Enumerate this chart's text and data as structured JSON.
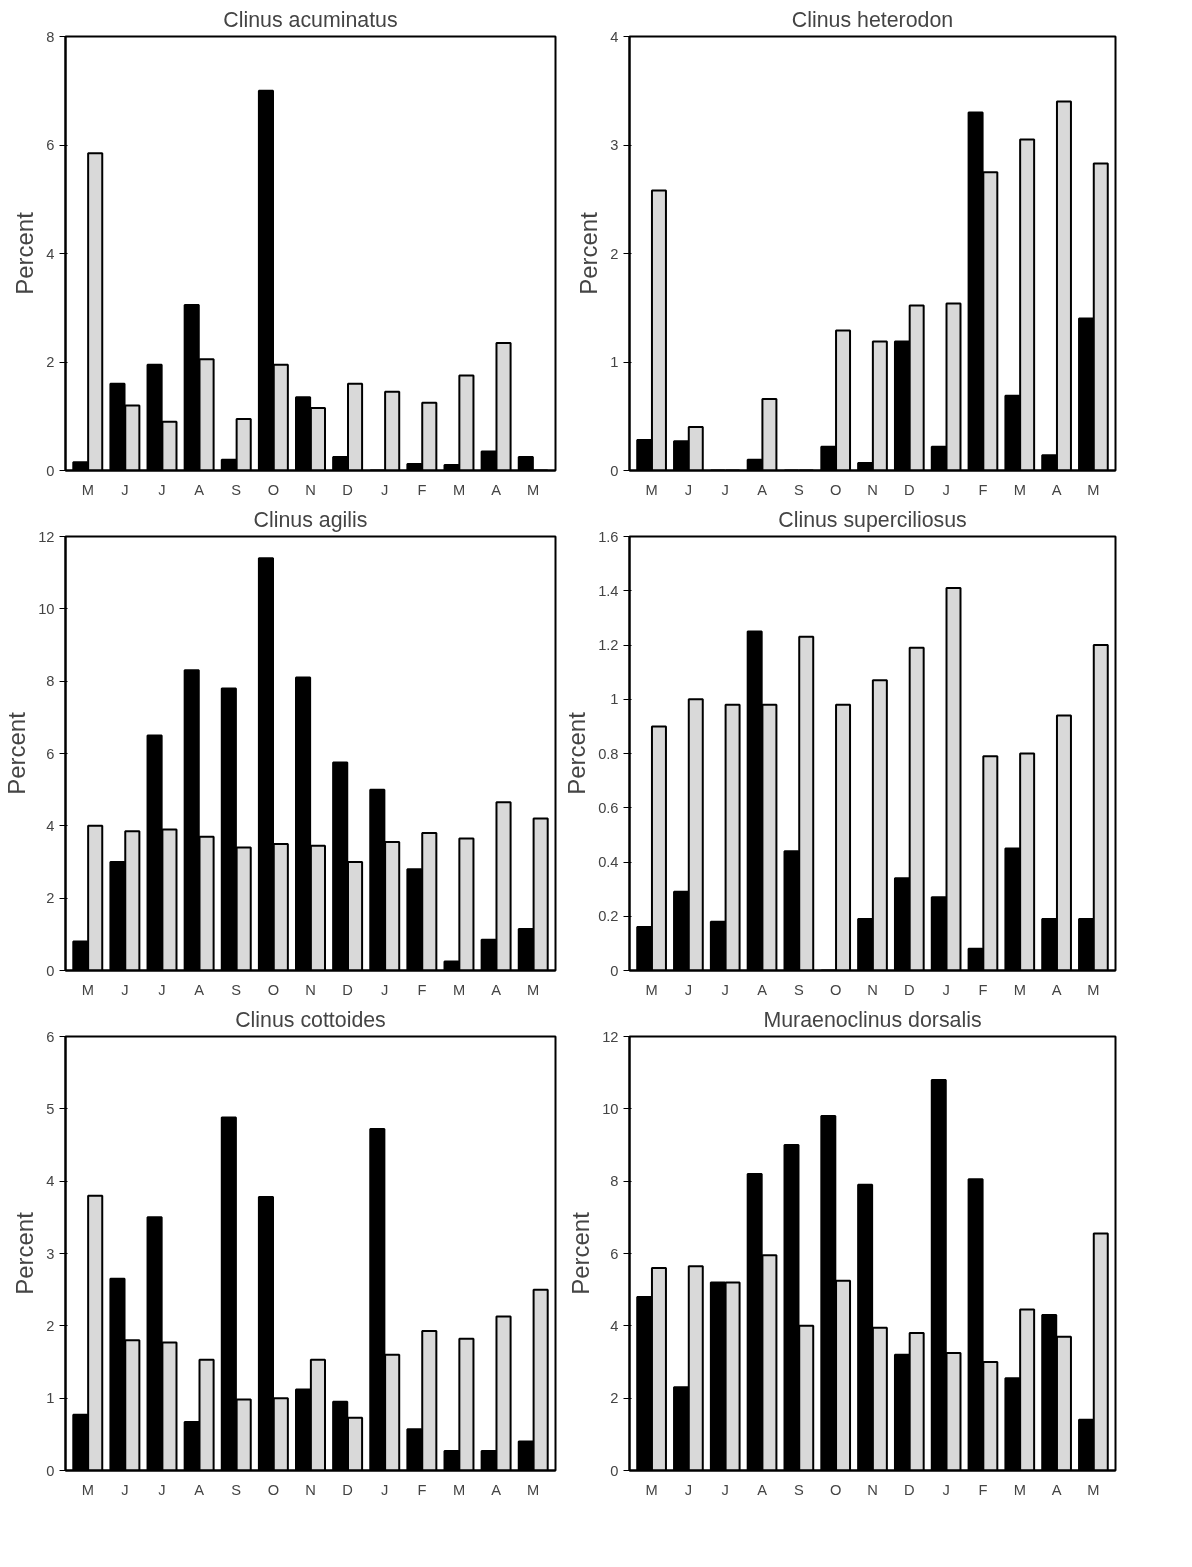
{
  "chart_data": [
    {
      "type": "bar",
      "title": "Clinus acuminatus",
      "ylabel": "Percent",
      "categories": [
        "M",
        "J",
        "J",
        "A",
        "S",
        "O",
        "N",
        "D",
        "J",
        "F",
        "M",
        "A",
        "M"
      ],
      "ylim": [
        0,
        8
      ],
      "yticks": [
        0,
        2,
        4,
        6,
        8
      ],
      "series": [
        {
          "color": "#000000",
          "values": [
            0.15,
            1.6,
            1.95,
            3.05,
            0.2,
            7.0,
            1.35,
            0.25,
            0,
            0.12,
            0.1,
            0.35,
            0.25
          ]
        },
        {
          "color": "#d9d9d9",
          "values": [
            5.85,
            1.2,
            0.9,
            2.05,
            0.95,
            1.95,
            1.15,
            1.6,
            1.45,
            1.25,
            1.75,
            2.35,
            0
          ]
        }
      ]
    },
    {
      "type": "bar",
      "title": "Clinus heterodon",
      "ylabel": "Percent",
      "categories": [
        "M",
        "J",
        "J",
        "A",
        "S",
        "O",
        "N",
        "D",
        "J",
        "F",
        "M",
        "A",
        "M"
      ],
      "ylim": [
        0,
        4
      ],
      "yticks": [
        0,
        1,
        2,
        3,
        4
      ],
      "series": [
        {
          "color": "#000000",
          "values": [
            0.28,
            0.27,
            0,
            0.1,
            0,
            0.22,
            0.07,
            1.19,
            0.22,
            3.3,
            0.69,
            0.14,
            1.4
          ]
        },
        {
          "color": "#d9d9d9",
          "values": [
            2.58,
            0.4,
            0,
            0.66,
            0,
            1.29,
            1.19,
            1.52,
            1.54,
            2.75,
            3.05,
            3.4,
            2.83
          ]
        }
      ]
    },
    {
      "type": "bar",
      "title": "Clinus agilis",
      "ylabel": "Percent",
      "categories": [
        "M",
        "J",
        "J",
        "A",
        "S",
        "O",
        "N",
        "D",
        "J",
        "F",
        "M",
        "A",
        "M"
      ],
      "ylim": [
        0,
        12
      ],
      "yticks": [
        0,
        2,
        4,
        6,
        8,
        10,
        12
      ],
      "series": [
        {
          "color": "#000000",
          "values": [
            0.8,
            3.0,
            6.5,
            8.3,
            7.8,
            11.4,
            8.1,
            5.75,
            5.0,
            2.8,
            0.25,
            0.85,
            1.15
          ]
        },
        {
          "color": "#d9d9d9",
          "values": [
            4.0,
            3.85,
            3.9,
            3.7,
            3.4,
            3.5,
            3.45,
            3.0,
            3.55,
            3.8,
            3.65,
            4.65,
            4.2
          ]
        }
      ]
    },
    {
      "type": "bar",
      "title": "Clinus superciliosus",
      "ylabel": "Percent",
      "categories": [
        "M",
        "J",
        "J",
        "A",
        "S",
        "O",
        "N",
        "D",
        "J",
        "F",
        "M",
        "A",
        "M"
      ],
      "ylim": [
        0,
        1.6
      ],
      "yticks": [
        0,
        0.2,
        0.4,
        0.6,
        0.8,
        1,
        1.2,
        1.4,
        1.6
      ],
      "series": [
        {
          "color": "#000000",
          "values": [
            0.16,
            0.29,
            0.18,
            1.25,
            0.44,
            0,
            0.19,
            0.34,
            0.27,
            0.08,
            0.45,
            0.19,
            0.19
          ]
        },
        {
          "color": "#d9d9d9",
          "values": [
            0.9,
            1.0,
            0.98,
            0.98,
            1.23,
            0.98,
            1.07,
            1.19,
            1.41,
            0.79,
            0.8,
            0.94,
            1.2
          ]
        }
      ]
    },
    {
      "type": "bar",
      "title": "Clinus cottoides",
      "ylabel": "Percent",
      "categories": [
        "M",
        "J",
        "J",
        "A",
        "S",
        "O",
        "N",
        "D",
        "J",
        "F",
        "M",
        "A",
        "M"
      ],
      "ylim": [
        0,
        6
      ],
      "yticks": [
        0,
        1,
        2,
        3,
        4,
        5,
        6
      ],
      "series": [
        {
          "color": "#000000",
          "values": [
            0.77,
            2.65,
            3.5,
            0.67,
            4.88,
            3.78,
            1.12,
            0.95,
            4.72,
            0.57,
            0.27,
            0.27,
            0.4
          ]
        },
        {
          "color": "#d9d9d9",
          "values": [
            3.8,
            1.8,
            1.77,
            1.53,
            0.98,
            1.0,
            1.53,
            0.73,
            1.6,
            1.93,
            1.82,
            2.13,
            2.5
          ]
        }
      ]
    },
    {
      "type": "bar",
      "title": "Muraenoclinus dorsalis",
      "ylabel": "Percent",
      "categories": [
        "M",
        "J",
        "J",
        "A",
        "S",
        "O",
        "N",
        "D",
        "J",
        "F",
        "M",
        "A",
        "M"
      ],
      "ylim": [
        0,
        12
      ],
      "yticks": [
        0,
        2,
        4,
        6,
        8,
        10,
        12
      ],
      "series": [
        {
          "color": "#000000",
          "values": [
            4.8,
            2.3,
            5.2,
            8.2,
            9.0,
            9.8,
            7.9,
            3.2,
            10.8,
            8.05,
            2.55,
            4.3,
            1.4
          ]
        },
        {
          "color": "#d9d9d9",
          "values": [
            5.6,
            5.65,
            5.2,
            5.95,
            4.0,
            5.25,
            3.95,
            3.8,
            3.25,
            3.0,
            4.45,
            3.7,
            6.55
          ]
        }
      ]
    }
  ]
}
